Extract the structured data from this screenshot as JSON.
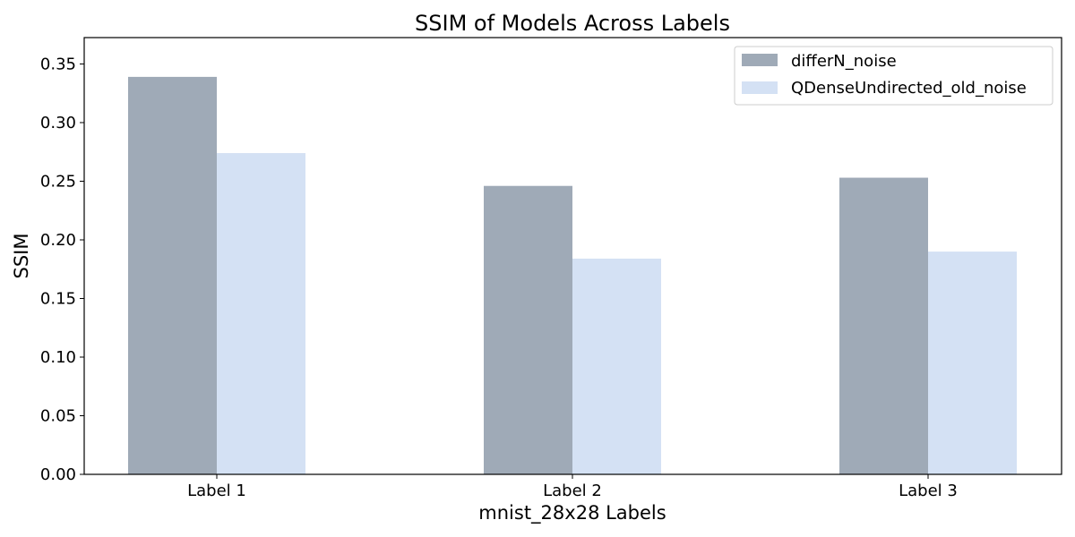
{
  "chart_data": {
    "type": "bar",
    "title": "SSIM of Models Across Labels",
    "xlabel": "mnist_28x28 Labels",
    "ylabel": "SSIM",
    "categories": [
      "Label 1",
      "Label 2",
      "Label 3"
    ],
    "series": [
      {
        "name": "differN_noise",
        "values": [
          0.339,
          0.246,
          0.253
        ],
        "color": "#9faab7"
      },
      {
        "name": "QDenseUndirected_old_noise",
        "values": [
          0.274,
          0.184,
          0.19
        ],
        "color": "#d4e1f4"
      }
    ],
    "ylim": [
      0,
      0.3725
    ],
    "yticks": [
      "0.00",
      "0.05",
      "0.10",
      "0.15",
      "0.20",
      "0.25",
      "0.30",
      "0.35"
    ],
    "grid": false,
    "legend_position": "top-right"
  }
}
